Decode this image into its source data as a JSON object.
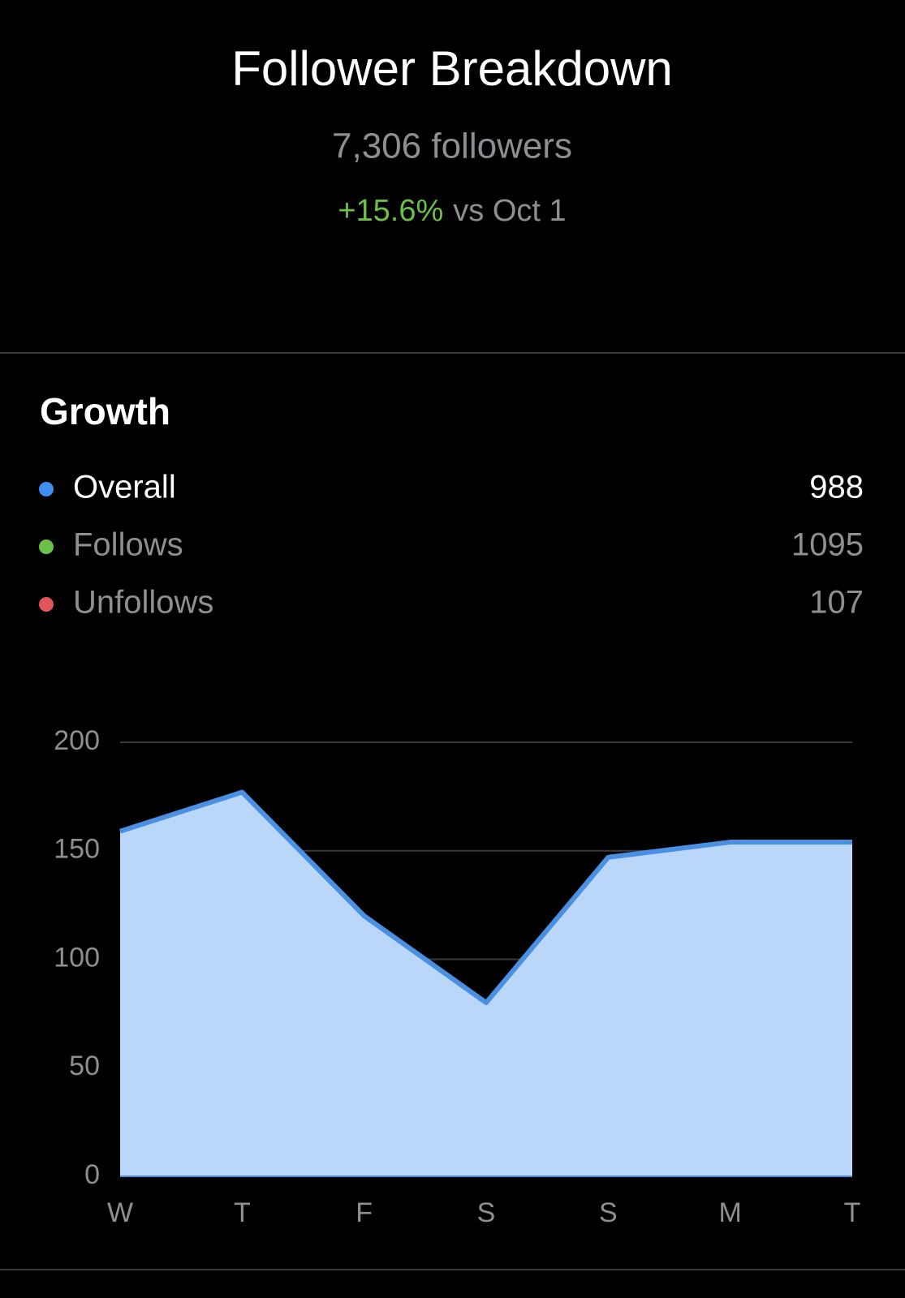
{
  "header": {
    "title": "Follower Breakdown",
    "subtitle": "7,306 followers",
    "change": "+15.6%",
    "change_note": "vs Oct 1",
    "change_color": "#6cc04a"
  },
  "growth": {
    "title": "Growth",
    "items": [
      {
        "name": "Overall",
        "color": "#3f8ff0",
        "value": 988
      },
      {
        "name": "Follows",
        "color": "#6cc04a",
        "value": 1095
      },
      {
        "name": "Unfollows",
        "color": "#e0555a",
        "value": 107
      }
    ]
  },
  "chart_data": {
    "type": "area",
    "categories": [
      "W",
      "T",
      "F",
      "S",
      "S",
      "M",
      "T"
    ],
    "series": [
      {
        "name": "Overall",
        "color": "#4a90e2",
        "fill": "#bad7fa",
        "values": [
          159,
          177,
          120,
          80,
          147,
          154,
          154
        ]
      }
    ],
    "ylim": [
      0,
      200
    ],
    "yticks": [
      0,
      50,
      100,
      150,
      200
    ],
    "grid": true
  }
}
